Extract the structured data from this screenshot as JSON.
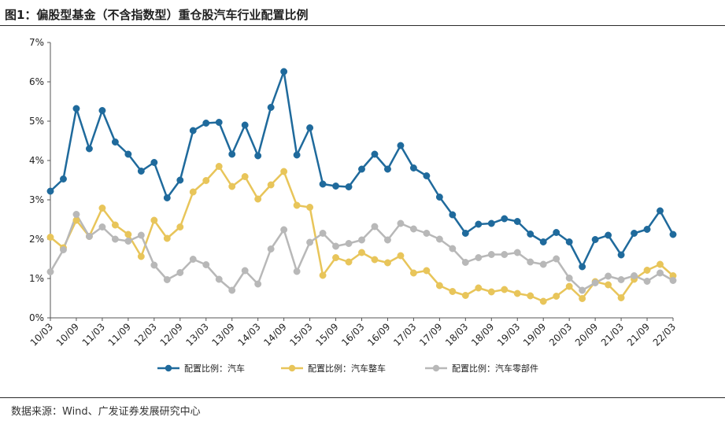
{
  "figure": {
    "title": "图1：偏股型基金（不含指数型）重仓股汽车行业配置比例",
    "source": "数据来源：Wind、广发证券发展研究中心"
  },
  "chart_data": {
    "type": "line",
    "title": "",
    "xlabel": "",
    "ylabel": "",
    "ylim": [
      0,
      7
    ],
    "yticks": [
      "0%",
      "1%",
      "2%",
      "3%",
      "4%",
      "5%",
      "6%",
      "7%"
    ],
    "xtick_labels": [
      "10/03",
      "10/09",
      "11/03",
      "11/09",
      "12/03",
      "12/09",
      "13/03",
      "13/09",
      "14/03",
      "14/09",
      "15/03",
      "15/09",
      "16/03",
      "16/09",
      "17/03",
      "17/09",
      "18/03",
      "18/09",
      "19/03",
      "19/09",
      "20/03",
      "20/09",
      "21/03",
      "21/09",
      "22/03"
    ],
    "x": [
      "10/03",
      "10/06",
      "10/09",
      "10/12",
      "11/03",
      "11/06",
      "11/09",
      "11/12",
      "12/03",
      "12/06",
      "12/09",
      "12/12",
      "13/03",
      "13/06",
      "13/09",
      "13/12",
      "14/03",
      "14/06",
      "14/09",
      "14/12",
      "15/03",
      "15/06",
      "15/09",
      "15/12",
      "16/03",
      "16/06",
      "16/09",
      "16/12",
      "17/03",
      "17/06",
      "17/09",
      "17/12",
      "18/03",
      "18/06",
      "18/09",
      "18/12",
      "19/03",
      "19/06",
      "19/09",
      "19/12",
      "20/03",
      "20/06",
      "20/09",
      "20/12",
      "21/03",
      "21/06",
      "21/09",
      "21/12",
      "22/03"
    ],
    "legend_position": "bottom",
    "grid": false,
    "series": [
      {
        "name": "配置比例：汽车",
        "color": "#1f6a9c",
        "values": [
          3.22,
          3.53,
          5.32,
          4.3,
          5.27,
          4.47,
          4.16,
          3.73,
          3.95,
          3.05,
          3.5,
          4.76,
          4.95,
          4.97,
          4.16,
          4.9,
          4.12,
          5.35,
          6.26,
          4.14,
          4.83,
          3.4,
          3.35,
          3.33,
          3.78,
          4.16,
          3.78,
          4.38,
          3.81,
          3.61,
          3.07,
          2.62,
          2.15,
          2.38,
          2.4,
          2.52,
          2.45,
          2.13,
          1.93,
          2.17,
          1.93,
          1.3,
          1.99,
          2.1,
          1.6,
          2.15,
          2.25,
          2.72,
          2.12
        ]
      },
      {
        "name": "配置比例：汽车整车",
        "color": "#e8c55a",
        "values": [
          2.05,
          1.78,
          2.48,
          2.07,
          2.79,
          2.36,
          2.12,
          1.56,
          2.48,
          2.02,
          2.31,
          3.2,
          3.49,
          3.85,
          3.34,
          3.59,
          3.02,
          3.38,
          3.72,
          2.86,
          2.81,
          1.08,
          1.53,
          1.42,
          1.66,
          1.48,
          1.4,
          1.58,
          1.14,
          1.2,
          0.82,
          0.67,
          0.57,
          0.76,
          0.66,
          0.72,
          0.62,
          0.56,
          0.42,
          0.55,
          0.8,
          0.49,
          0.92,
          0.84,
          0.51,
          0.98,
          1.21,
          1.36,
          1.07
        ]
      },
      {
        "name": "配置比例：汽车零部件",
        "color": "#b8b8b8",
        "values": [
          1.17,
          1.73,
          2.63,
          2.07,
          2.31,
          2.0,
          1.95,
          2.1,
          1.34,
          0.97,
          1.15,
          1.49,
          1.35,
          0.98,
          0.7,
          1.2,
          0.86,
          1.75,
          2.24,
          1.18,
          1.92,
          2.15,
          1.82,
          1.89,
          1.98,
          2.32,
          1.98,
          2.4,
          2.26,
          2.15,
          2.0,
          1.76,
          1.41,
          1.53,
          1.61,
          1.61,
          1.66,
          1.42,
          1.36,
          1.5,
          1.01,
          0.7,
          0.89,
          1.06,
          0.97,
          1.07,
          0.93,
          1.14,
          0.95
        ]
      }
    ]
  }
}
